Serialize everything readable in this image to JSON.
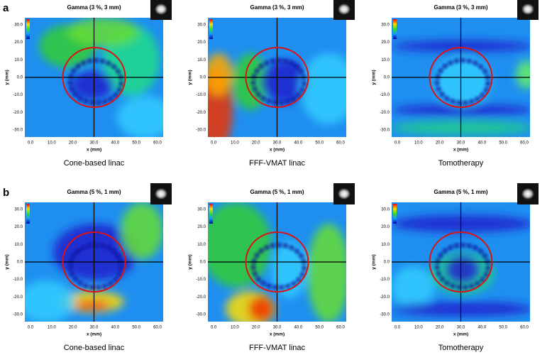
{
  "rows": [
    {
      "label": "a",
      "panels": [
        {
          "title": "Gamma (3 %, 3 mm)",
          "caption": "Cone-based linac"
        },
        {
          "title": "Gamma (3 %, 3 mm)",
          "caption": "FFF-VMAT linac"
        },
        {
          "title": "Gamma (3 %, 3 mm)",
          "caption": "Tomotherapy"
        }
      ]
    },
    {
      "label": "b",
      "panels": [
        {
          "title": "Gamma (5 %, 1 mm)",
          "caption": "Cone-based linac"
        },
        {
          "title": "Gamma (5 %, 1 mm)",
          "caption": "FFF-VMAT linac"
        },
        {
          "title": "Gamma (5 %, 1 mm)",
          "caption": "Tomotherapy"
        }
      ]
    }
  ],
  "axes": {
    "x_label": "x (mm)",
    "y_label": "y (mm)",
    "xticks": [
      "0.0",
      "10.0",
      "20.0",
      "30.0",
      "40.0",
      "50.0",
      "60.0"
    ],
    "yticks": [
      "30.0",
      "20.0",
      "10.0",
      "0.0",
      "-10.0",
      "-20.0",
      "-30.0"
    ]
  }
}
